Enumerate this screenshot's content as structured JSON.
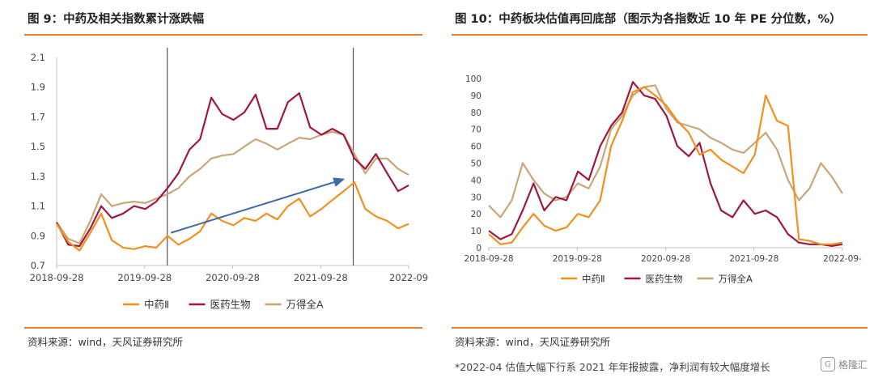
{
  "left": {
    "title": "图 9：中药及相关指数累计涨跌幅",
    "source": "资料来源：wind，天风证券研究所"
  },
  "right": {
    "title": "图 10：中药板块估值再回底部（图示为各指数近 10 年 PE 分位数，%）",
    "source": "资料来源：wind，天风证券研究所",
    "footnote": "*2022-04 估值大幅下行系 2021 年年报披露，净利润有较大幅度增长"
  },
  "watermark": {
    "text": "格隆汇",
    "icon": "gelonghui-logo-icon"
  },
  "colors": {
    "zhongyao": "#f0901e",
    "yiyao": "#9e1840",
    "wande": "#c9a677",
    "arrow": "#3f6aa8",
    "axis": "#bfbfbf",
    "vline": "#555555"
  },
  "chart_data": [
    {
      "type": "line",
      "title": "图 9：中药及相关指数累计涨跌幅",
      "xlabel": "",
      "ylabel": "",
      "x_ticks": [
        "2018-09-28",
        "2019-09-28",
        "2020-09-28",
        "2021-09-28",
        "2022-09"
      ],
      "y_ticks": [
        "0.7",
        "0.9",
        "1.1",
        "1.3",
        "1.5",
        "1.7",
        "1.9",
        "2.1"
      ],
      "ylim": [
        0.7,
        2.1
      ],
      "xlim": [
        "2018-09-28",
        "2022-09-28"
      ],
      "grid": false,
      "legend": "bottom",
      "vertical_lines": [
        "2019-12-31",
        "2022-02-10"
      ],
      "arrow": {
        "from": [
          "2020-01-15",
          0.92
        ],
        "to": [
          "2021-12-31",
          1.28
        ]
      },
      "x": [
        "2018-09-28",
        "2018-11-15",
        "2019-01-01",
        "2019-02-15",
        "2019-04-01",
        "2019-05-15",
        "2019-07-01",
        "2019-08-15",
        "2019-10-01",
        "2019-11-15",
        "2020-01-01",
        "2020-02-15",
        "2020-04-01",
        "2020-05-15",
        "2020-07-01",
        "2020-08-15",
        "2020-10-01",
        "2020-11-15",
        "2021-01-01",
        "2021-02-15",
        "2021-04-01",
        "2021-05-15",
        "2021-07-01",
        "2021-08-15",
        "2021-10-01",
        "2021-11-15",
        "2022-01-01",
        "2022-02-15",
        "2022-04-01",
        "2022-05-15",
        "2022-07-01",
        "2022-08-15",
        "2022-09-28"
      ],
      "series": [
        {
          "name": "中药Ⅱ",
          "color": "#f0901e",
          "values": [
            0.98,
            0.86,
            0.8,
            0.92,
            1.05,
            0.87,
            0.82,
            0.81,
            0.83,
            0.82,
            0.9,
            0.84,
            0.88,
            0.93,
            1.05,
            1.0,
            0.97,
            1.02,
            1.0,
            1.05,
            1.01,
            1.1,
            1.15,
            1.03,
            1.08,
            1.14,
            1.2,
            1.26,
            1.08,
            1.03,
            1.0,
            0.95,
            0.98
          ]
        },
        {
          "name": "医药生物",
          "color": "#9e1840",
          "values": [
            0.99,
            0.84,
            0.83,
            0.95,
            1.1,
            1.02,
            1.05,
            1.1,
            1.08,
            1.13,
            1.22,
            1.32,
            1.48,
            1.55,
            1.83,
            1.72,
            1.68,
            1.73,
            1.85,
            1.62,
            1.62,
            1.8,
            1.86,
            1.63,
            1.58,
            1.62,
            1.58,
            1.42,
            1.35,
            1.45,
            1.32,
            1.2,
            1.24
          ]
        },
        {
          "name": "万得全A",
          "color": "#c9a677",
          "values": [
            0.99,
            0.88,
            0.85,
            1.0,
            1.18,
            1.1,
            1.12,
            1.13,
            1.12,
            1.15,
            1.18,
            1.22,
            1.3,
            1.35,
            1.42,
            1.44,
            1.45,
            1.5,
            1.55,
            1.52,
            1.48,
            1.52,
            1.56,
            1.55,
            1.58,
            1.6,
            1.58,
            1.45,
            1.32,
            1.42,
            1.42,
            1.35,
            1.31
          ]
        }
      ]
    },
    {
      "type": "line",
      "title": "图 10：中药板块估值再回底部（图示为各指数近 10 年 PE 分位数，%）",
      "xlabel": "",
      "ylabel": "",
      "x_ticks": [
        "2018-09-28",
        "2019-09-28",
        "2020-09-28",
        "2021-09-28",
        "2022-09-"
      ],
      "y_ticks": [
        "0",
        "10",
        "20",
        "30",
        "40",
        "50",
        "60",
        "70",
        "80",
        "90",
        "100"
      ],
      "ylim": [
        0,
        100
      ],
      "xlim": [
        "2018-09-28",
        "2022-09-28"
      ],
      "grid": false,
      "legend": "bottom",
      "x": [
        "2018-09-28",
        "2018-11-15",
        "2019-01-01",
        "2019-02-15",
        "2019-04-01",
        "2019-05-15",
        "2019-07-01",
        "2019-08-15",
        "2019-10-01",
        "2019-11-15",
        "2020-01-01",
        "2020-02-15",
        "2020-04-01",
        "2020-05-15",
        "2020-07-01",
        "2020-08-15",
        "2020-10-01",
        "2020-11-15",
        "2021-01-01",
        "2021-02-15",
        "2021-04-01",
        "2021-05-15",
        "2021-07-01",
        "2021-08-15",
        "2021-10-01",
        "2021-11-15",
        "2022-01-01",
        "2022-02-15",
        "2022-04-01",
        "2022-05-15",
        "2022-07-01",
        "2022-08-15",
        "2022-09-28"
      ],
      "series": [
        {
          "name": "中药Ⅱ",
          "color": "#f0901e",
          "values": [
            8,
            2,
            3,
            12,
            20,
            13,
            10,
            12,
            20,
            18,
            28,
            60,
            75,
            92,
            95,
            90,
            84,
            75,
            68,
            55,
            58,
            52,
            48,
            44,
            55,
            90,
            75,
            72,
            5,
            4,
            2,
            2,
            3
          ]
        },
        {
          "name": "医药生物",
          "color": "#9e1840",
          "values": [
            10,
            5,
            8,
            22,
            38,
            22,
            30,
            28,
            45,
            40,
            60,
            72,
            80,
            98,
            90,
            88,
            78,
            60,
            54,
            62,
            38,
            22,
            18,
            28,
            20,
            22,
            18,
            8,
            3,
            2,
            2,
            1,
            2
          ]
        },
        {
          "name": "万得全A",
          "color": "#c9a677",
          "values": [
            25,
            18,
            28,
            50,
            40,
            32,
            28,
            30,
            38,
            35,
            48,
            70,
            78,
            90,
            95,
            96,
            82,
            74,
            72,
            70,
            65,
            62,
            58,
            56,
            62,
            68,
            58,
            40,
            28,
            35,
            50,
            42,
            32
          ]
        }
      ]
    }
  ]
}
